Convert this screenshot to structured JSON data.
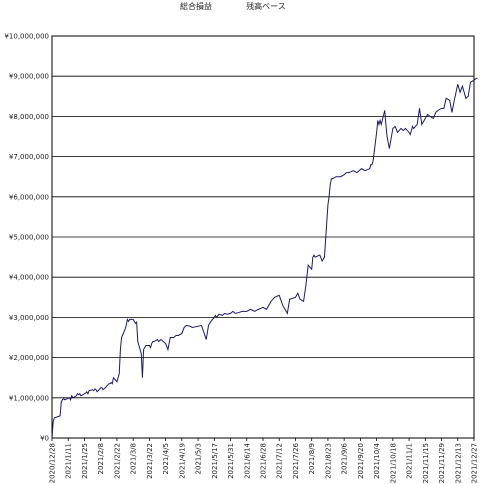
{
  "chart_data": {
    "type": "line",
    "title_left": "総合損益",
    "title_right": "残高ベース",
    "xlabel": "",
    "ylabel": "",
    "ylim": [
      0,
      10000000
    ],
    "y_ticks": [
      {
        "value": 0,
        "label": "¥0"
      },
      {
        "value": 1000000,
        "label": "¥1,000,000"
      },
      {
        "value": 2000000,
        "label": "¥2,000,000"
      },
      {
        "value": 3000000,
        "label": "¥3,000,000"
      },
      {
        "value": 4000000,
        "label": "¥4,000,000"
      },
      {
        "value": 5000000,
        "label": "¥5,000,000"
      },
      {
        "value": 6000000,
        "label": "¥6,000,000"
      },
      {
        "value": 7000000,
        "label": "¥7,000,000"
      },
      {
        "value": 8000000,
        "label": "¥8,000,000"
      },
      {
        "value": 9000000,
        "label": "¥9,000,000"
      },
      {
        "value": 10000000,
        "label": "¥10,000,000"
      }
    ],
    "x_ticks": [
      "2020/12/28",
      "2021/1/11",
      "2021/1/25",
      "2021/2/8",
      "2021/2/22",
      "2021/3/8",
      "2021/3/22",
      "2021/4/5",
      "2021/4/19",
      "2021/5/3",
      "2021/5/17",
      "2021/5/31",
      "2021/6/14",
      "2021/6/28",
      "2021/7/12",
      "2021/7/26",
      "2021/8/9",
      "2021/8/23",
      "2021/9/6",
      "2021/9/20",
      "2021/10/4",
      "2021/10/18",
      "2021/11/1",
      "2021/11/15",
      "2021/11/29",
      "2021/12/13",
      "2021/12/27"
    ],
    "grid": true,
    "legend": "none",
    "line_color": "#1a1a6e",
    "series": [
      {
        "x": [
          "2020/12/28",
          "2020/12/29",
          "2020/12/30",
          "2021/1/4",
          "2021/1/5",
          "2021/1/6",
          "2021/1/7",
          "2021/1/8",
          "2021/1/12",
          "2021/1/13",
          "2021/1/14",
          "2021/1/15",
          "2021/1/18",
          "2021/1/19",
          "2021/1/20",
          "2021/1/21",
          "2021/1/22",
          "2021/1/25",
          "2021/1/26",
          "2021/1/27",
          "2021/1/28",
          "2021/1/29",
          "2021/2/1",
          "2021/2/2",
          "2021/2/3",
          "2021/2/4",
          "2021/2/5",
          "2021/2/8",
          "2021/2/9",
          "2021/2/10",
          "2021/2/12",
          "2021/2/15",
          "2021/2/16",
          "2021/2/17",
          "2021/2/18",
          "2021/2/19",
          "2021/2/22",
          "2021/2/24",
          "2021/2/25",
          "2021/2/26",
          "2021/3/1",
          "2021/3/2",
          "2021/3/3",
          "2021/3/4",
          "2021/3/5",
          "2021/3/8",
          "2021/3/9",
          "2021/3/10",
          "2021/3/11",
          "2021/3/12",
          "2021/3/15",
          "2021/3/16",
          "2021/3/17",
          "2021/3/18",
          "2021/3/19",
          "2021/3/22",
          "2021/3/23",
          "2021/3/24",
          "2021/3/25",
          "2021/3/26",
          "2021/3/29",
          "2021/3/30",
          "2021/4/1",
          "2021/4/5",
          "2021/4/7",
          "2021/4/9",
          "2021/4/12",
          "2021/4/14",
          "2021/4/16",
          "2021/4/19",
          "2021/4/21",
          "2021/4/23",
          "2021/4/26",
          "2021/4/28",
          "2021/5/6",
          "2021/5/10",
          "2021/5/12",
          "2021/5/14",
          "2021/5/17",
          "2021/5/18",
          "2021/5/19",
          "2021/5/21",
          "2021/5/24",
          "2021/5/26",
          "2021/5/28",
          "2021/5/31",
          "2021/6/2",
          "2021/6/4",
          "2021/6/7",
          "2021/6/10",
          "2021/6/14",
          "2021/6/17",
          "2021/6/21",
          "2021/6/24",
          "2021/6/28",
          "2021/7/1",
          "2021/7/5",
          "2021/7/8",
          "2021/7/12",
          "2021/7/15",
          "2021/7/19",
          "2021/7/21",
          "2021/7/26",
          "2021/7/28",
          "2021/7/30",
          "2021/8/2",
          "2021/8/4",
          "2021/8/6",
          "2021/8/9",
          "2021/8/10",
          "2021/8/11",
          "2021/8/12",
          "2021/8/16",
          "2021/8/18",
          "2021/8/20",
          "2021/8/23",
          "2021/8/24",
          "2021/8/25",
          "2021/8/26",
          "2021/8/27",
          "2021/8/30",
          "2021/9/1",
          "2021/9/3",
          "2021/9/6",
          "2021/9/8",
          "2021/9/10",
          "2021/9/14",
          "2021/9/17",
          "2021/9/21",
          "2021/9/24",
          "2021/9/28",
          "2021/9/29",
          "2021/9/30",
          "2021/10/1",
          "2021/10/4",
          "2021/10/5",
          "2021/10/6",
          "2021/10/7",
          "2021/10/8",
          "2021/10/11",
          "2021/10/12",
          "2021/10/13",
          "2021/10/15",
          "2021/10/18",
          "2021/10/20",
          "2021/10/22",
          "2021/10/25",
          "2021/10/27",
          "2021/10/29",
          "2021/11/1",
          "2021/11/2",
          "2021/11/4",
          "2021/11/5",
          "2021/11/8",
          "2021/11/10",
          "2021/11/12",
          "2021/11/15",
          "2021/11/17",
          "2021/11/19",
          "2021/11/22",
          "2021/11/24",
          "2021/11/26",
          "2021/11/29",
          "2021/12/1",
          "2021/12/3",
          "2021/12/6",
          "2021/12/8",
          "2021/12/10",
          "2021/12/13",
          "2021/12/15",
          "2021/12/17",
          "2021/12/20",
          "2021/12/22",
          "2021/12/24",
          "2021/12/27",
          "2021/12/29",
          "2021/12/30"
        ],
        "values": [
          0,
          400000,
          500000,
          550000,
          900000,
          950000,
          980000,
          950000,
          1000000,
          950000,
          1050000,
          1000000,
          1050000,
          1100000,
          1080000,
          1100000,
          1050000,
          1100000,
          1120000,
          1150000,
          1100000,
          1180000,
          1200000,
          1180000,
          1220000,
          1200000,
          1150000,
          1250000,
          1250000,
          1200000,
          1250000,
          1350000,
          1350000,
          1380000,
          1350000,
          1500000,
          1400000,
          1600000,
          2200000,
          2500000,
          2700000,
          2800000,
          2950000,
          2900000,
          2950000,
          2950000,
          2900000,
          2850000,
          2880000,
          2400000,
          2100000,
          1500000,
          2200000,
          2250000,
          2300000,
          2300000,
          2250000,
          2350000,
          2400000,
          2400000,
          2450000,
          2400000,
          2450000,
          2350000,
          2200000,
          2500000,
          2500000,
          2550000,
          2550000,
          2600000,
          2750000,
          2800000,
          2780000,
          2750000,
          2800000,
          2450000,
          2800000,
          2900000,
          3000000,
          3050000,
          3000000,
          3080000,
          3050000,
          3100000,
          3080000,
          3100000,
          3150000,
          3100000,
          3120000,
          3150000,
          3150000,
          3200000,
          3150000,
          3200000,
          3250000,
          3200000,
          3400000,
          3500000,
          3550000,
          3300000,
          3100000,
          3450000,
          3500000,
          3600000,
          3450000,
          3400000,
          3800000,
          4300000,
          4200000,
          4500000,
          4550000,
          4500000,
          4550000,
          4400000,
          4500000,
          5800000,
          6000000,
          6300000,
          6450000,
          6450000,
          6500000,
          6500000,
          6500000,
          6550000,
          6600000,
          6600000,
          6650000,
          6600000,
          6700000,
          6650000,
          6700000,
          6800000,
          6800000,
          6900000,
          7600000,
          7900000,
          7800000,
          7900000,
          7800000,
          8150000,
          7800000,
          7500000,
          7200000,
          7700000,
          7750000,
          7600000,
          7700000,
          7650000,
          7700000,
          7600000,
          7550000,
          7750000,
          7700000,
          7800000,
          8200000,
          7800000,
          7950000,
          8050000,
          8000000,
          7950000,
          8100000,
          8150000,
          8200000,
          8200000,
          8450000,
          8400000,
          8100000,
          8400000,
          8800000,
          8600000,
          8750000,
          8450000,
          8500000,
          8850000,
          8900000,
          8950000,
          8950000
        ]
      }
    ]
  }
}
